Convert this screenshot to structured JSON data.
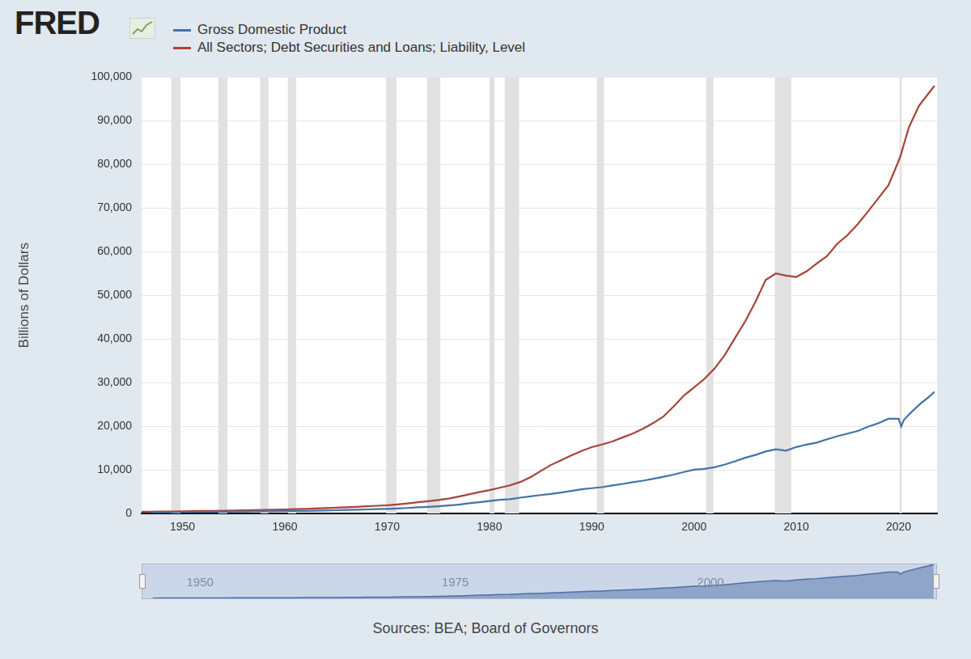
{
  "chart_data": {
    "type": "line",
    "logo": "FRED",
    "x": [
      1946,
      1947,
      1948,
      1949,
      1950,
      1951,
      1952,
      1953,
      1954,
      1955,
      1956,
      1957,
      1958,
      1959,
      1960,
      1961,
      1962,
      1963,
      1964,
      1965,
      1966,
      1967,
      1968,
      1969,
      1970,
      1971,
      1972,
      1973,
      1974,
      1975,
      1976,
      1977,
      1978,
      1979,
      1980,
      1981,
      1982,
      1983,
      1984,
      1985,
      1986,
      1987,
      1988,
      1989,
      1990,
      1991,
      1992,
      1993,
      1994,
      1995,
      1996,
      1997,
      1998,
      1999,
      2000,
      2001,
      2002,
      2003,
      2004,
      2005,
      2006,
      2007,
      2008,
      2009,
      2010,
      2011,
      2012,
      2013,
      2014,
      2015,
      2016,
      2017,
      2018,
      2019,
      2020,
      2020.25,
      2020.5,
      2021,
      2022,
      2023,
      2023.5
    ],
    "series": [
      {
        "name": "Gross Domestic Product",
        "color": "#4572a7",
        "values": [
          null,
          250,
          275,
          272,
          320,
          350,
          370,
          383,
          392,
          427,
          450,
          468,
          480,
          515,
          530,
          562,
          596,
          635,
          680,
          740,
          800,
          845,
          925,
          992,
          1040,
          1134,
          1254,
          1395,
          1509,
          1661,
          1822,
          2032,
          2330,
          2587,
          2865,
          3130,
          3265,
          3615,
          3930,
          4220,
          4460,
          4800,
          5170,
          5520,
          5790,
          6020,
          6430,
          6760,
          7160,
          7500,
          7950,
          8420,
          8900,
          9500,
          10030,
          10230,
          10590,
          11200,
          11950,
          12760,
          13420,
          14200,
          14700,
          14400,
          15230,
          15790,
          16250,
          16990,
          17690,
          18290,
          18910,
          19880,
          20660,
          21690,
          21700,
          19950,
          21400,
          22650,
          24900,
          26800,
          27900
        ]
      },
      {
        "name": "All Sectors; Debt Securities and Loans; Liability, Level",
        "color": "#a9423a",
        "values": [
          400,
          420,
          440,
          460,
          500,
          530,
          565,
          600,
          630,
          690,
          730,
          770,
          820,
          880,
          930,
          990,
          1060,
          1140,
          1230,
          1320,
          1410,
          1510,
          1640,
          1760,
          1870,
          2050,
          2280,
          2560,
          2820,
          3080,
          3420,
          3860,
          4370,
          4900,
          5350,
          5880,
          6450,
          7200,
          8300,
          9700,
          11100,
          12200,
          13300,
          14300,
          15200,
          15800,
          16500,
          17400,
          18300,
          19400,
          20700,
          22200,
          24500,
          27000,
          28900,
          30800,
          33200,
          36300,
          40200,
          44000,
          48500,
          53500,
          55000,
          54500,
          54200,
          55500,
          57300,
          59000,
          61800,
          63800,
          66300,
          69200,
          72200,
          75200,
          80800,
          82500,
          84500,
          88500,
          93500,
          96500,
          98000
        ]
      }
    ],
    "y_label": "Billions of Dollars",
    "xlim": [
      1946,
      2023.75
    ],
    "xticks": [
      1950,
      1960,
      1970,
      1980,
      1990,
      2000,
      2010,
      2020
    ],
    "ylim": [
      0,
      100000
    ],
    "yticks": [
      0,
      {
        "value": 10000,
        "label": "10,000"
      },
      {
        "value": 20000,
        "label": "20,000"
      },
      {
        "value": 30000,
        "label": "30,000"
      },
      {
        "value": 40000,
        "label": "40,000"
      },
      {
        "value": 50000,
        "label": "50,000"
      },
      {
        "value": 60000,
        "label": "60,000"
      },
      {
        "value": 70000,
        "label": "70,000"
      },
      {
        "value": 80000,
        "label": "80,000"
      },
      {
        "value": 90000,
        "label": "90,000"
      },
      {
        "value": 100000,
        "label": "100,000"
      }
    ],
    "grid": true,
    "legend": "top-left",
    "recessions": [
      [
        1948.9,
        1949.8
      ],
      [
        1953.5,
        1954.4
      ],
      [
        1957.6,
        1958.4
      ],
      [
        1960.3,
        1961.1
      ],
      [
        1969.9,
        1970.9
      ],
      [
        1973.9,
        1975.2
      ],
      [
        1980.0,
        1980.5
      ],
      [
        1981.5,
        1982.9
      ],
      [
        1990.5,
        1991.2
      ],
      [
        2001.2,
        2001.9
      ],
      [
        2007.9,
        2009.5
      ],
      [
        2020.1,
        2020.3
      ]
    ],
    "navigator": {
      "series": "Gross Domestic Product",
      "ylim": [
        0,
        28000
      ],
      "xticks": [
        1950,
        1975,
        2000
      ]
    },
    "source": "Sources: BEA; Board of Governors"
  }
}
